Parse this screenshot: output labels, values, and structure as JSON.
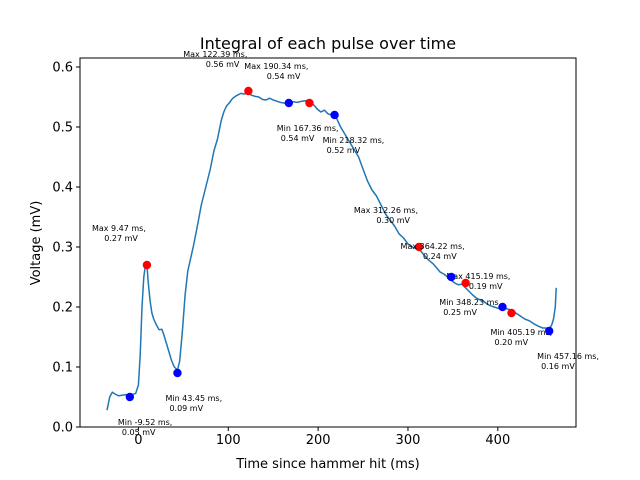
{
  "chart_data": {
    "type": "line",
    "title": "Integral of each pulse over time",
    "xlabel": "Time since hammer hit (ms)",
    "ylabel": "Voltage (mV)",
    "xlim": [
      -65,
      487
    ],
    "ylim": [
      0,
      0.615
    ],
    "xticks": [
      0,
      100,
      200,
      300,
      400
    ],
    "yticks": [
      0.0,
      0.1,
      0.2,
      0.3,
      0.4,
      0.5,
      0.6
    ],
    "xtick_labels": [
      "0",
      "100",
      "200",
      "300",
      "400"
    ],
    "ytick_labels": [
      "0.0",
      "0.1",
      "0.2",
      "0.3",
      "0.4",
      "0.5",
      "0.6"
    ],
    "line_color": "#1f77b4",
    "max_color": "#ff0000",
    "min_color": "#0000ff",
    "series": [
      {
        "x": [
          -35,
          -32,
          -29,
          -26,
          -22,
          -18,
          -14,
          -10,
          -7,
          -3,
          0,
          2,
          4,
          6,
          8,
          9.5,
          11,
          13,
          15,
          17,
          20,
          23,
          26,
          28,
          31,
          34,
          37,
          40,
          43.5,
          46,
          49,
          52,
          55,
          58,
          61,
          65,
          70,
          75,
          80,
          84,
          88,
          92,
          95,
          98,
          101,
          105,
          109,
          114,
          118,
          122,
          126,
          130,
          134,
          138,
          142,
          146,
          150,
          154,
          158,
          162,
          167,
          172,
          177,
          182,
          187,
          191,
          195,
          199,
          203,
          207,
          211,
          215,
          218,
          221,
          225,
          229,
          233,
          237,
          241,
          245,
          250,
          255,
          260,
          265,
          270,
          275,
          280,
          285,
          290,
          295,
          300,
          305,
          309,
          312,
          316,
          320,
          324,
          328,
          332,
          336,
          340,
          344,
          348,
          352,
          356,
          360,
          364,
          368,
          372,
          376,
          380,
          384,
          388,
          392,
          396,
          400,
          405,
          410,
          415,
          420,
          425,
          430,
          435,
          440,
          445,
          450,
          454,
          457,
          460,
          462,
          464,
          465
        ],
        "y": [
          0.028,
          0.05,
          0.058,
          0.055,
          0.052,
          0.053,
          0.054,
          0.053,
          0.054,
          0.056,
          0.07,
          0.12,
          0.2,
          0.25,
          0.272,
          0.27,
          0.24,
          0.21,
          0.19,
          0.18,
          0.17,
          0.162,
          0.163,
          0.155,
          0.14,
          0.125,
          0.11,
          0.1,
          0.095,
          0.11,
          0.16,
          0.22,
          0.26,
          0.28,
          0.3,
          0.33,
          0.37,
          0.4,
          0.43,
          0.46,
          0.48,
          0.51,
          0.525,
          0.535,
          0.54,
          0.548,
          0.552,
          0.556,
          0.555,
          0.556,
          0.553,
          0.551,
          0.55,
          0.546,
          0.545,
          0.548,
          0.545,
          0.543,
          0.541,
          0.54,
          0.538,
          0.542,
          0.541,
          0.543,
          0.544,
          0.542,
          0.537,
          0.53,
          0.525,
          0.528,
          0.522,
          0.52,
          0.519,
          0.513,
          0.5,
          0.49,
          0.48,
          0.47,
          0.46,
          0.45,
          0.43,
          0.41,
          0.395,
          0.385,
          0.37,
          0.355,
          0.345,
          0.335,
          0.322,
          0.315,
          0.305,
          0.3,
          0.297,
          0.298,
          0.29,
          0.283,
          0.277,
          0.272,
          0.265,
          0.258,
          0.255,
          0.25,
          0.245,
          0.24,
          0.237,
          0.238,
          0.232,
          0.226,
          0.22,
          0.215,
          0.212,
          0.21,
          0.205,
          0.202,
          0.2,
          0.198,
          0.197,
          0.197,
          0.195,
          0.19,
          0.185,
          0.18,
          0.177,
          0.172,
          0.168,
          0.165,
          0.165,
          0.163,
          0.17,
          0.18,
          0.2,
          0.232
        ]
      }
    ],
    "markers": [
      {
        "kind": "max",
        "x": 9.47,
        "y": 0.27,
        "label": "Max 9.47 ms,\n0.27 mV",
        "anchor": "upper-left"
      },
      {
        "kind": "min",
        "x": -9.52,
        "y": 0.05,
        "label": "Min -9.52 ms,\n0.05 mV",
        "anchor": "lower-right"
      },
      {
        "kind": "min",
        "x": 43.45,
        "y": 0.09,
        "label": "Min 43.45 ms,\n0.09 mV",
        "anchor": "lower-right"
      },
      {
        "kind": "max",
        "x": 122.39,
        "y": 0.56,
        "label": "Max 122.39 ms,\n0.56 mV",
        "anchor": "upper-left"
      },
      {
        "kind": "max",
        "x": 190.34,
        "y": 0.54,
        "label": "Max 190.34 ms,\n0.54 mV",
        "anchor": "upper-left"
      },
      {
        "kind": "min",
        "x": 167.36,
        "y": 0.54,
        "label": "Min 167.36 ms,\n0.54 mV",
        "anchor": "lower-right"
      },
      {
        "kind": "min",
        "x": 218.32,
        "y": 0.52,
        "label": "Min 218.32 ms,\n0.52 mV",
        "anchor": "lower-right"
      },
      {
        "kind": "max",
        "x": 312.26,
        "y": 0.3,
        "label": "Max 312.26 ms,\n0.30 mV",
        "anchor": "upper-left"
      },
      {
        "kind": "max",
        "x": 364.22,
        "y": 0.24,
        "label": "Max 364.22 ms,\n0.24 mV",
        "anchor": "upper-left"
      },
      {
        "kind": "max",
        "x": 415.19,
        "y": 0.19,
        "label": "Max 415.19 ms,\n0.19 mV",
        "anchor": "upper-left"
      },
      {
        "kind": "min",
        "x": 348.23,
        "y": 0.25,
        "label": "Min 348.23 ms,\n0.25 mV",
        "anchor": "lower-right"
      },
      {
        "kind": "min",
        "x": 405.19,
        "y": 0.2,
        "label": "Min 405.19 ms,\n0.20 mV",
        "anchor": "lower-right"
      },
      {
        "kind": "min",
        "x": 457.16,
        "y": 0.16,
        "label": "Min 457.16 ms,\n0.16 mV",
        "anchor": "lower-right"
      }
    ],
    "grid": false,
    "legend": false
  }
}
